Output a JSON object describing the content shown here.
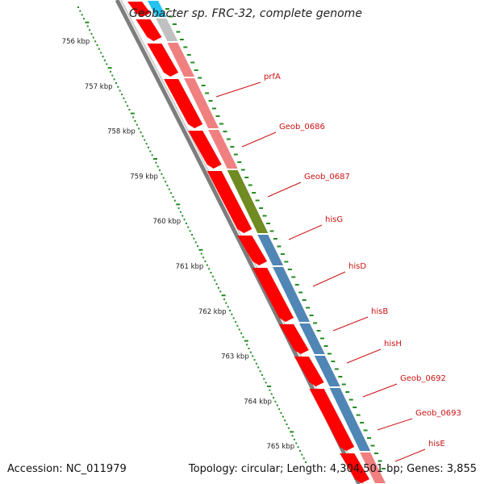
{
  "title": "Geobacter sp. FRC-32, complete genome",
  "accession": "Accession: NC_011979",
  "topology": "Topology: circular; Length: 4,304,501 bp; Genes: 3,855",
  "scale_labels": [
    "756 kbp",
    "757 kbp",
    "758 kbp",
    "759 kbp",
    "760 kbp",
    "761 kbp",
    "762 kbp",
    "763 kbp",
    "764 kbp",
    "765 kbp"
  ],
  "gene_labels": [
    "prfA",
    "Geob_0686",
    "Geob_0687",
    "hisG",
    "hisD",
    "hisB",
    "hisH",
    "Geob_0692",
    "Geob_0693",
    "hisE"
  ],
  "colors": {
    "cds_arrow": "#ff0000",
    "blue_gene": "#4f86b6",
    "salmon_gene": "#f08080",
    "gray_gene": "#c0c0c0",
    "cyan_gene": "#22c3f0",
    "olive_gene": "#6f8b22",
    "tick": "#228b22",
    "backbone": "#888888",
    "label": "#cc1111"
  }
}
